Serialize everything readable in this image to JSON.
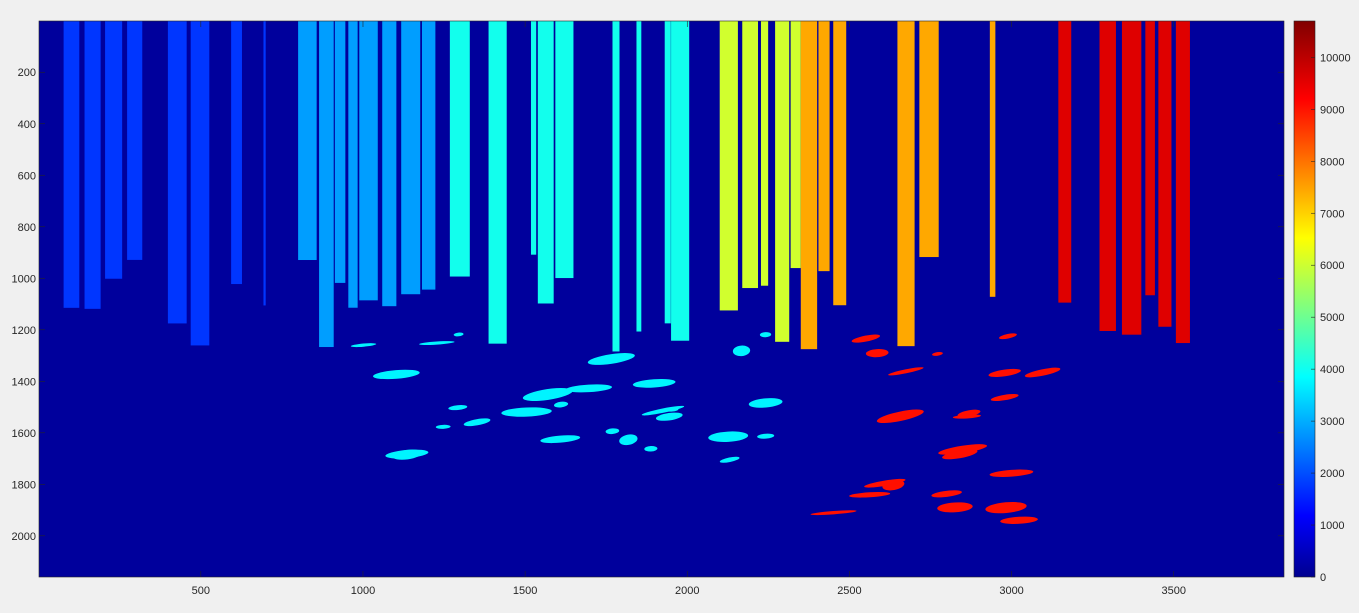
{
  "chart_data": {
    "type": "heatmap",
    "title": "",
    "xlabel": "",
    "ylabel": "",
    "colormap": "jet",
    "x_axis": {
      "range": [
        1,
        3840
      ],
      "ticks": [
        500,
        1000,
        1500,
        2000,
        2500,
        3000,
        3500
      ]
    },
    "y_axis": {
      "range": [
        1,
        2160
      ],
      "reversed": true,
      "ticks": [
        200,
        400,
        600,
        800,
        1000,
        1200,
        1400,
        1600,
        1800,
        2000
      ]
    },
    "colorbar": {
      "range": [
        0,
        10700
      ],
      "ticks": [
        0,
        1000,
        2000,
        3000,
        4000,
        5000,
        6000,
        7000,
        8000,
        9000,
        10000
      ]
    },
    "background_value": 300,
    "regions": [
      {
        "name": "trunks-far-left",
        "x": [
          60,
          700
        ],
        "value": 1900
      },
      {
        "name": "trunks-left",
        "x": [
          800,
          1250
        ],
        "value": 3000
      },
      {
        "name": "trunks-cyan",
        "x": [
          1250,
          2100
        ],
        "value": 4200
      },
      {
        "name": "trunks-yellow",
        "x": [
          2100,
          2350
        ],
        "value": 6200
      },
      {
        "name": "trunks-orange",
        "x": [
          2350,
          2950
        ],
        "value": 7600
      },
      {
        "name": "trunks-red",
        "x": [
          2950,
          3550
        ],
        "value": 9700
      },
      {
        "name": "ground-cyan-band",
        "x": [
          1000,
          2300
        ],
        "value": 3900
      },
      {
        "name": "ground-red-patches",
        "x": [
          2450,
          3100
        ],
        "value": 9200
      }
    ]
  }
}
